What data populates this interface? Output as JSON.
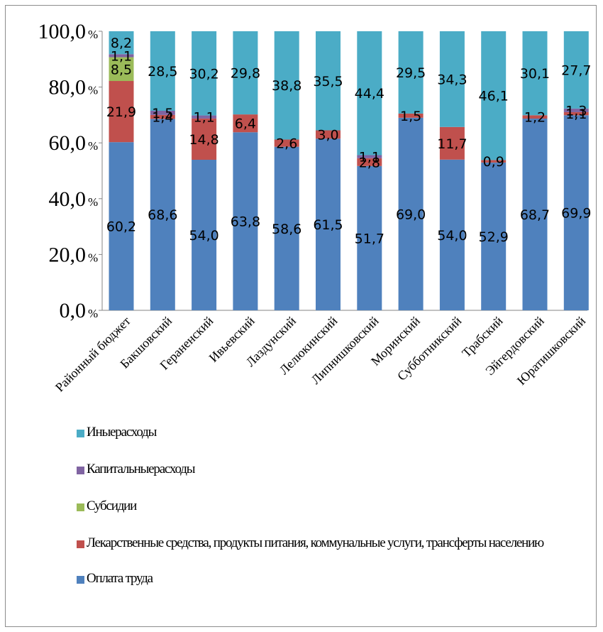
{
  "chart_data": {
    "type": "bar",
    "stacked": true,
    "categories": [
      "Районный бюджет",
      "Бакшовский",
      "Гераненский",
      "Ивьевский",
      "Лаздунский",
      "Лелюкинский",
      "Липнишковский",
      "Моринский",
      "Субботникский",
      "Трабский",
      "Эйгердовский",
      "Юратишковский"
    ],
    "series": [
      {
        "name": "Оплата труда",
        "color": "#4f81bd",
        "values": [
          60.2,
          68.6,
          54.0,
          63.8,
          58.6,
          61.5,
          51.7,
          69.0,
          54.0,
          52.9,
          68.7,
          69.9
        ],
        "labels": [
          "60,2",
          "68,6",
          "54,0",
          "63,8",
          "58,6",
          "61,5",
          "51,7",
          "69,0",
          "54,0",
          "52,9",
          "68,7",
          "69,9"
        ]
      },
      {
        "name": "Лекарственные средства, продукты питания, коммунальные услуги, трансферты населению",
        "color": "#c0504d",
        "values": [
          21.9,
          1.4,
          14.8,
          6.4,
          2.6,
          3.0,
          2.8,
          1.5,
          11.7,
          0.9,
          1.2,
          1.1
        ],
        "labels": [
          "21,9",
          "1,4",
          "14,8",
          "6,4",
          "2,6",
          "3,0",
          "2,8",
          "1,5",
          "11,7",
          "0,9",
          "1,2",
          "1,1"
        ]
      },
      {
        "name": "Субсидии",
        "color": "#9bbb59",
        "values": [
          8.5,
          0,
          0,
          0,
          0,
          0,
          0,
          0,
          0,
          0,
          0,
          0
        ],
        "labels": [
          "8,5",
          "",
          "",
          "",
          "",
          "",
          "",
          "",
          "",
          "",
          "",
          ""
        ]
      },
      {
        "name": "Капитальныерасходы",
        "color": "#8064a2",
        "values": [
          1.1,
          1.5,
          1.1,
          0,
          0,
          0,
          1.1,
          0,
          0,
          0,
          0,
          1.3
        ],
        "labels": [
          "1,1",
          "1,5",
          "1,1",
          "",
          "",
          "",
          "1,1",
          "",
          "",
          "",
          "",
          "1,3"
        ]
      },
      {
        "name": "Иныерасходы",
        "color": "#4bacc6",
        "values": [
          8.2,
          28.5,
          30.2,
          29.8,
          38.8,
          35.5,
          44.4,
          29.5,
          34.3,
          46.1,
          30.1,
          27.7
        ],
        "labels": [
          "8,2",
          "28,5",
          "30,2",
          "29,8",
          "38,8",
          "35,5",
          "44,4",
          "29,5",
          "34,3",
          "46,1",
          "30,1",
          "27,7"
        ]
      }
    ],
    "legend_order": [
      4,
      3,
      2,
      1,
      0
    ],
    "yticks": [
      "0,0",
      "20,0",
      "40,0",
      "60,0",
      "80,0",
      "100,0"
    ],
    "ytick_unit": "%",
    "ylim": [
      0,
      100
    ],
    "grid": false,
    "legend_position": "bottom-left"
  }
}
